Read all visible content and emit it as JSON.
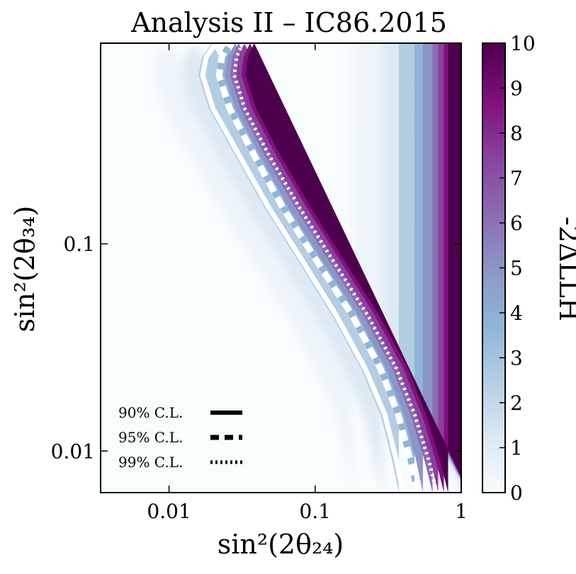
{
  "chart_data": {
    "type": "heatmap",
    "title": "Analysis II – IC86.2015",
    "xlabel": "sin²(2θ₂₄)",
    "ylabel": "sin²(2θ₃₄)",
    "xscale": "log",
    "yscale": "log",
    "xlim": [
      0.0034,
      1.0
    ],
    "ylim": [
      0.0063,
      0.93
    ],
    "x_ticks": [
      {
        "value": 0.01,
        "label": "0.01"
      },
      {
        "value": 0.1,
        "label": "0.1"
      },
      {
        "value": 1.0,
        "label": "1"
      }
    ],
    "y_ticks": [
      {
        "value": 0.01,
        "label": "0.01"
      },
      {
        "value": 0.1,
        "label": "0.1"
      }
    ],
    "colorbar": {
      "label": "-2ΔLLH",
      "range": [
        0,
        10
      ],
      "ticks": [
        "0",
        "1",
        "2",
        "3",
        "4",
        "5",
        "6",
        "7",
        "8",
        "9",
        "10"
      ],
      "colors": [
        "#f7fcfd",
        "#dde9f3",
        "#b4cde3",
        "#8fb5d7",
        "#8c96c6",
        "#8c6bb1",
        "#88419d",
        "#810f7c",
        "#4d004b"
      ]
    },
    "contours": [
      {
        "name": "90% C.L.",
        "style": "solid",
        "points": [
          [
            0.4,
            0.0063
          ],
          [
            0.36,
            0.009
          ],
          [
            0.3,
            0.015
          ],
          [
            0.22,
            0.025
          ],
          [
            0.14,
            0.045
          ],
          [
            0.08,
            0.085
          ],
          [
            0.048,
            0.15
          ],
          [
            0.03,
            0.27
          ],
          [
            0.02,
            0.45
          ],
          [
            0.017,
            0.65
          ],
          [
            0.018,
            0.8
          ],
          [
            0.021,
            0.93
          ]
        ]
      },
      {
        "name": "95% C.L.",
        "style": "dashed",
        "points": [
          [
            0.5,
            0.0063
          ],
          [
            0.45,
            0.009
          ],
          [
            0.37,
            0.015
          ],
          [
            0.28,
            0.025
          ],
          [
            0.18,
            0.045
          ],
          [
            0.1,
            0.085
          ],
          [
            0.06,
            0.15
          ],
          [
            0.038,
            0.27
          ],
          [
            0.026,
            0.45
          ],
          [
            0.022,
            0.65
          ],
          [
            0.023,
            0.8
          ],
          [
            0.026,
            0.93
          ]
        ]
      },
      {
        "name": "99% C.L.",
        "style": "dotted",
        "points": [
          [
            0.68,
            0.0063
          ],
          [
            0.6,
            0.009
          ],
          [
            0.48,
            0.015
          ],
          [
            0.36,
            0.025
          ],
          [
            0.23,
            0.045
          ],
          [
            0.13,
            0.085
          ],
          [
            0.078,
            0.15
          ],
          [
            0.048,
            0.27
          ],
          [
            0.033,
            0.45
          ],
          [
            0.028,
            0.65
          ],
          [
            0.029,
            0.8
          ],
          [
            0.032,
            0.93
          ]
        ]
      }
    ],
    "legend": {
      "placement": "lower-left",
      "entries": [
        {
          "label": "90% C.L.",
          "style": "solid"
        },
        {
          "label": "95% C.L.",
          "style": "dashed"
        },
        {
          "label": "99% C.L.",
          "style": "dotted"
        }
      ]
    }
  }
}
